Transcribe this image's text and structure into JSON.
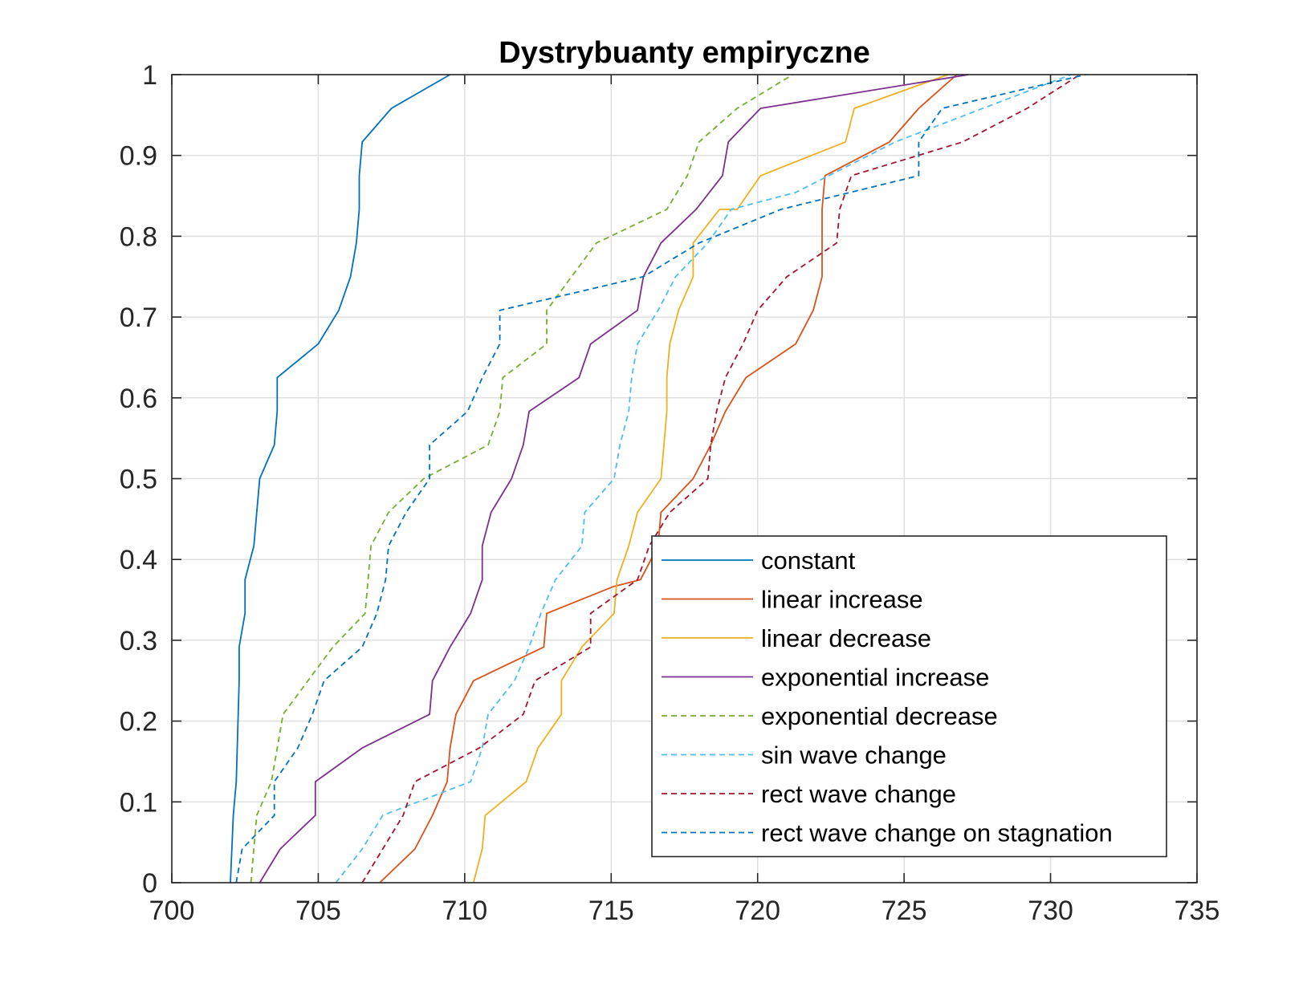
{
  "chart_data": {
    "type": "line",
    "title": "Dystrybuanty empiryczne",
    "xlabel": "",
    "ylabel": "",
    "xlim": [
      700,
      735
    ],
    "ylim": [
      0,
      1
    ],
    "x_ticks": [
      700,
      705,
      710,
      715,
      720,
      725,
      730,
      735
    ],
    "y_ticks": [
      0,
      0.1,
      0.2,
      0.3,
      0.4,
      0.5,
      0.6,
      0.7,
      0.8,
      0.9,
      1
    ],
    "y_tick_labels": [
      "0",
      "0.1",
      "0.2",
      "0.3",
      "0.4",
      "0.5",
      "0.6",
      "0.7",
      "0.8",
      "0.9",
      "1"
    ],
    "grid": true,
    "legend_position": "bottom-right",
    "series": [
      {
        "name": "constant",
        "color": "#0072BD",
        "dash": "solid",
        "points": [
          [
            702.0,
            0
          ],
          [
            702.1,
            0.0833
          ],
          [
            702.2,
            0.125
          ],
          [
            702.3,
            0.25
          ],
          [
            702.3,
            0.2917
          ],
          [
            702.5,
            0.3333
          ],
          [
            702.5,
            0.375
          ],
          [
            702.8,
            0.4167
          ],
          [
            702.9,
            0.4583
          ],
          [
            703.0,
            0.5
          ],
          [
            703.5,
            0.5417
          ],
          [
            703.6,
            0.5833
          ],
          [
            703.6,
            0.625
          ],
          [
            705.0,
            0.6667
          ],
          [
            705.7,
            0.7083
          ],
          [
            706.1,
            0.75
          ],
          [
            706.3,
            0.7917
          ],
          [
            706.4,
            0.8333
          ],
          [
            706.4,
            0.875
          ],
          [
            706.5,
            0.9167
          ],
          [
            707.5,
            0.9583
          ],
          [
            709.5,
            1.0
          ]
        ]
      },
      {
        "name": "linear increase",
        "color": "#D95319",
        "dash": "solid",
        "points": [
          [
            707.1,
            0
          ],
          [
            708.3,
            0.0417
          ],
          [
            708.9,
            0.0833
          ],
          [
            709.4,
            0.125
          ],
          [
            709.5,
            0.1667
          ],
          [
            709.7,
            0.2083
          ],
          [
            710.3,
            0.25
          ],
          [
            712.7,
            0.2917
          ],
          [
            712.8,
            0.3333
          ],
          [
            715.1,
            0.3667
          ],
          [
            716.0,
            0.375
          ],
          [
            716.6,
            0.4167
          ],
          [
            716.7,
            0.4583
          ],
          [
            717.8,
            0.5
          ],
          [
            718.4,
            0.5417
          ],
          [
            718.9,
            0.5833
          ],
          [
            719.6,
            0.625
          ],
          [
            721.3,
            0.6667
          ],
          [
            721.9,
            0.7083
          ],
          [
            722.2,
            0.75
          ],
          [
            722.2,
            0.7917
          ],
          [
            722.2,
            0.8333
          ],
          [
            722.3,
            0.875
          ],
          [
            724.5,
            0.9167
          ],
          [
            725.5,
            0.9583
          ],
          [
            726.8,
            1.0
          ]
        ]
      },
      {
        "name": "linear decrease",
        "color": "#EDB120",
        "dash": "solid",
        "points": [
          [
            710.3,
            0
          ],
          [
            710.6,
            0.0417
          ],
          [
            710.7,
            0.0833
          ],
          [
            712.1,
            0.125
          ],
          [
            712.5,
            0.1667
          ],
          [
            713.3,
            0.2083
          ],
          [
            713.3,
            0.25
          ],
          [
            714.0,
            0.2917
          ],
          [
            715.1,
            0.3333
          ],
          [
            715.2,
            0.375
          ],
          [
            715.6,
            0.4167
          ],
          [
            715.9,
            0.4583
          ],
          [
            716.7,
            0.5
          ],
          [
            716.8,
            0.5417
          ],
          [
            716.9,
            0.5833
          ],
          [
            716.9,
            0.625
          ],
          [
            717.0,
            0.6667
          ],
          [
            717.3,
            0.7083
          ],
          [
            717.8,
            0.75
          ],
          [
            717.8,
            0.7917
          ],
          [
            718.7,
            0.8333
          ],
          [
            719.3,
            0.8333
          ],
          [
            720.1,
            0.875
          ],
          [
            723.0,
            0.9167
          ],
          [
            723.3,
            0.9583
          ],
          [
            726.5,
            1.0
          ]
        ]
      },
      {
        "name": "exponential increase",
        "color": "#7E2F8E",
        "dash": "solid",
        "points": [
          [
            703.0,
            0
          ],
          [
            703.7,
            0.0417
          ],
          [
            704.9,
            0.0833
          ],
          [
            704.9,
            0.125
          ],
          [
            706.5,
            0.1667
          ],
          [
            708.8,
            0.2083
          ],
          [
            708.9,
            0.25
          ],
          [
            709.5,
            0.2917
          ],
          [
            710.2,
            0.3333
          ],
          [
            710.6,
            0.375
          ],
          [
            710.6,
            0.4167
          ],
          [
            710.9,
            0.4583
          ],
          [
            711.6,
            0.5
          ],
          [
            712.0,
            0.5417
          ],
          [
            712.2,
            0.5833
          ],
          [
            713.9,
            0.625
          ],
          [
            714.3,
            0.6667
          ],
          [
            715.9,
            0.7083
          ],
          [
            716.1,
            0.75
          ],
          [
            716.7,
            0.7917
          ],
          [
            717.9,
            0.8333
          ],
          [
            718.8,
            0.875
          ],
          [
            719.0,
            0.9167
          ],
          [
            720.1,
            0.9583
          ],
          [
            727.2,
            1.0
          ]
        ]
      },
      {
        "name": "exponential decrease",
        "color": "#77AC30",
        "dash": "dashed",
        "points": [
          [
            702.7,
            0
          ],
          [
            702.9,
            0.0833
          ],
          [
            703.4,
            0.125
          ],
          [
            703.8,
            0.2083
          ],
          [
            705.5,
            0.2917
          ],
          [
            706.6,
            0.3333
          ],
          [
            706.8,
            0.4167
          ],
          [
            706.8,
            0.4167
          ],
          [
            707.4,
            0.4583
          ],
          [
            708.6,
            0.5
          ],
          [
            710.8,
            0.5417
          ],
          [
            711.2,
            0.5833
          ],
          [
            711.3,
            0.625
          ],
          [
            712.8,
            0.6667
          ],
          [
            712.8,
            0.7083
          ],
          [
            714.5,
            0.7917
          ],
          [
            716.9,
            0.8333
          ],
          [
            717.6,
            0.875
          ],
          [
            718.0,
            0.9167
          ],
          [
            719.3,
            0.9583
          ],
          [
            721.2,
            1.0
          ]
        ]
      },
      {
        "name": "sin wave change",
        "color": "#4DBEEE",
        "dash": "dashed",
        "points": [
          [
            705.6,
            0
          ],
          [
            706.5,
            0.0417
          ],
          [
            707.2,
            0.0833
          ],
          [
            710.2,
            0.125
          ],
          [
            710.6,
            0.1667
          ],
          [
            710.8,
            0.2083
          ],
          [
            711.7,
            0.25
          ],
          [
            712.2,
            0.2917
          ],
          [
            712.6,
            0.3333
          ],
          [
            713.1,
            0.375
          ],
          [
            714.0,
            0.4167
          ],
          [
            714.1,
            0.4583
          ],
          [
            715.1,
            0.5
          ],
          [
            715.3,
            0.5417
          ],
          [
            715.6,
            0.5833
          ],
          [
            715.7,
            0.625
          ],
          [
            715.9,
            0.6667
          ],
          [
            716.6,
            0.7083
          ],
          [
            717.2,
            0.75
          ],
          [
            718.3,
            0.7917
          ],
          [
            719.1,
            0.8333
          ],
          [
            721.3,
            0.8542
          ],
          [
            724.7,
            0.9167
          ],
          [
            726.2,
            0.9375
          ],
          [
            730.7,
            1.0
          ]
        ]
      },
      {
        "name": "rect wave change",
        "color": "#A2142F",
        "dash": "dashed",
        "points": [
          [
            706.5,
            0
          ],
          [
            707.2,
            0.0417
          ],
          [
            707.9,
            0.0833
          ],
          [
            708.3,
            0.125
          ],
          [
            710.5,
            0.1667
          ],
          [
            712.0,
            0.2083
          ],
          [
            712.4,
            0.25
          ],
          [
            714.3,
            0.2917
          ],
          [
            714.3,
            0.3333
          ],
          [
            715.9,
            0.375
          ],
          [
            716.3,
            0.4167
          ],
          [
            717.0,
            0.4583
          ],
          [
            718.3,
            0.5
          ],
          [
            718.4,
            0.5417
          ],
          [
            718.6,
            0.5833
          ],
          [
            718.9,
            0.625
          ],
          [
            719.5,
            0.6667
          ],
          [
            720.0,
            0.7083
          ],
          [
            721.0,
            0.75
          ],
          [
            722.7,
            0.7917
          ],
          [
            722.8,
            0.8333
          ],
          [
            723.2,
            0.875
          ],
          [
            727.0,
            0.9167
          ],
          [
            729.2,
            0.9583
          ],
          [
            731.0,
            1.0
          ]
        ]
      },
      {
        "name": "rect wave change on stagnation",
        "color": "#0072BD",
        "dash": "dashed",
        "points": [
          [
            702.2,
            0
          ],
          [
            702.4,
            0.0417
          ],
          [
            703.5,
            0.0833
          ],
          [
            703.5,
            0.125
          ],
          [
            704.3,
            0.1667
          ],
          [
            704.8,
            0.2083
          ],
          [
            705.2,
            0.25
          ],
          [
            706.5,
            0.2917
          ],
          [
            707.0,
            0.3333
          ],
          [
            707.3,
            0.375
          ],
          [
            707.4,
            0.4167
          ],
          [
            708.0,
            0.4583
          ],
          [
            708.8,
            0.5
          ],
          [
            708.8,
            0.5417
          ],
          [
            710.1,
            0.5833
          ],
          [
            710.6,
            0.625
          ],
          [
            711.2,
            0.6667
          ],
          [
            711.2,
            0.7083
          ],
          [
            716.1,
            0.75
          ],
          [
            718.0,
            0.7917
          ],
          [
            720.8,
            0.8333
          ],
          [
            725.5,
            0.875
          ],
          [
            725.5,
            0.9167
          ],
          [
            726.3,
            0.9583
          ],
          [
            731.2,
            1.0
          ]
        ]
      }
    ]
  }
}
